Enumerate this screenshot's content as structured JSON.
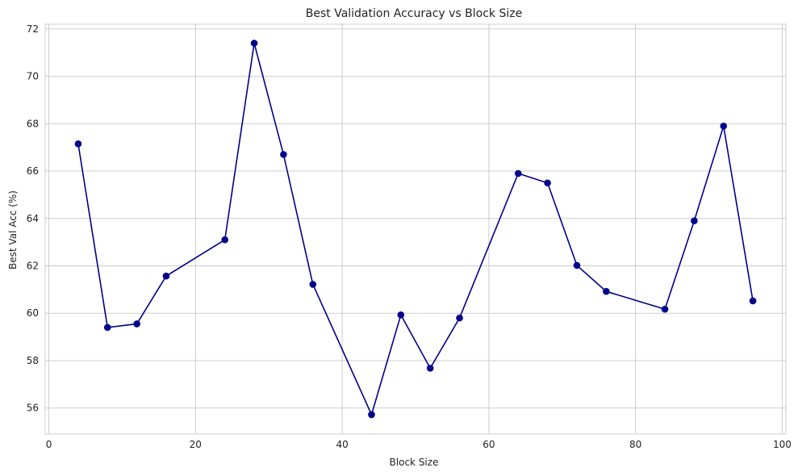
{
  "chart_data": {
    "type": "line",
    "title": "Best Validation Accuracy vs Block Size",
    "xlabel": "Block Size",
    "ylabel": "Best Val Acc (%)",
    "xlim": [
      -0.5,
      100.5
    ],
    "ylim": [
      54.9,
      72.2
    ],
    "xticks": [
      0,
      20,
      40,
      60,
      80,
      100
    ],
    "yticks": [
      56,
      58,
      60,
      62,
      64,
      66,
      68,
      70,
      72
    ],
    "grid": true,
    "series": [
      {
        "color": "#00008b",
        "marker": "circle",
        "x": [
          4,
          8,
          12,
          16,
          24,
          28,
          32,
          36,
          44,
          48,
          52,
          56,
          64,
          68,
          72,
          76,
          84,
          88,
          92,
          96
        ],
        "y": [
          67.15,
          59.4,
          59.55,
          61.57,
          63.1,
          71.4,
          66.7,
          61.22,
          55.72,
          59.93,
          57.68,
          59.8,
          65.9,
          65.5,
          62.02,
          60.92,
          60.17,
          63.9,
          67.9,
          60.52
        ]
      }
    ]
  }
}
